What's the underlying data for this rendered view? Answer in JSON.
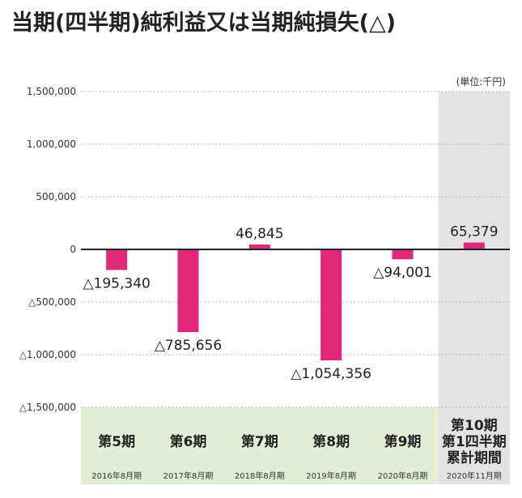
{
  "title": "当期(四半期)純利益又は当期純損失(△)",
  "unit_label": "(単位:千円)",
  "colors": {
    "bar": "#e0287a",
    "category_band": "#e2efd6",
    "highlight_band": "#e3e3e3",
    "grid": "#b5b5b5"
  },
  "chart_data": {
    "type": "bar",
    "title": "当期(四半期)純利益又は当期純損失(△)",
    "xlabel": "",
    "ylabel": "",
    "unit": "(単位:千円)",
    "ylim": [
      -1500000,
      1500000
    ],
    "yticks": [
      1500000,
      1000000,
      500000,
      0,
      -500000,
      -1000000,
      -1500000
    ],
    "ytick_labels": [
      "1,500,000",
      "1,000,000",
      "500,000",
      "0",
      "△500,000",
      "△1,000,000",
      "△1,500,000"
    ],
    "grid": true,
    "categories": [
      "第5期",
      "第6期",
      "第7期",
      "第8期",
      "第9期",
      "第10期 第1四半期 累計期間"
    ],
    "category_lines": [
      [
        "第5期"
      ],
      [
        "第6期"
      ],
      [
        "第7期"
      ],
      [
        "第8期"
      ],
      [
        "第9期"
      ],
      [
        "第10期",
        "第1四半期",
        "累計期間"
      ]
    ],
    "periods": [
      "2016年8月期",
      "2017年8月期",
      "2018年8月期",
      "2019年8月期",
      "2020年8月期",
      "2020年11月期"
    ],
    "values": [
      -195340,
      -785656,
      46845,
      -1054356,
      -94001,
      65379
    ],
    "value_labels": [
      "△195,340",
      "△785,656",
      "46,845",
      "△1,054,356",
      "△94,001",
      "65,379"
    ],
    "highlighted_category": 5
  }
}
